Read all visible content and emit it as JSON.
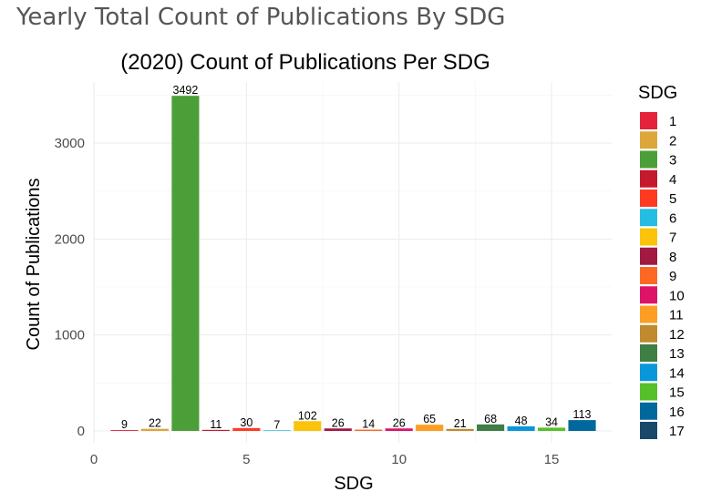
{
  "page_title": "Yearly Total Count of Publications By SDG",
  "chart_data": {
    "type": "bar",
    "title": "(2020) Count of Publications Per SDG",
    "xlabel": "SDG",
    "ylabel": "Count of Publications",
    "xlim": [
      0,
      17
    ],
    "ylim": [
      0,
      3500
    ],
    "x_ticks": [
      0,
      5,
      10,
      15
    ],
    "y_ticks": [
      0,
      1000,
      2000,
      3000
    ],
    "grid": true,
    "legend": {
      "title": "SDG",
      "position": "right",
      "entries": [
        "1",
        "2",
        "3",
        "4",
        "5",
        "6",
        "7",
        "8",
        "9",
        "10",
        "11",
        "12",
        "13",
        "14",
        "15",
        "16",
        "17"
      ]
    },
    "categories": [
      1,
      2,
      3,
      4,
      5,
      6,
      7,
      8,
      9,
      10,
      11,
      12,
      13,
      14,
      15,
      16
    ],
    "values": [
      9,
      22,
      3492,
      11,
      30,
      7,
      102,
      26,
      14,
      26,
      65,
      21,
      68,
      48,
      34,
      113
    ],
    "data_labels": [
      "9",
      "22",
      "3492",
      "11",
      "30",
      "7",
      "102",
      "26",
      "14",
      "26",
      "65",
      "21",
      "68",
      "48",
      "34",
      "113"
    ],
    "colors": [
      "#E5243B",
      "#DDA63A",
      "#4C9F38",
      "#C5192D",
      "#FF3A21",
      "#26BDE2",
      "#FCC30B",
      "#A21942",
      "#FD6925",
      "#DD1367",
      "#FD9D24",
      "#BF8B2E",
      "#3F7E44",
      "#0A97D9",
      "#56C02B",
      "#00689D",
      "#19486A"
    ]
  }
}
